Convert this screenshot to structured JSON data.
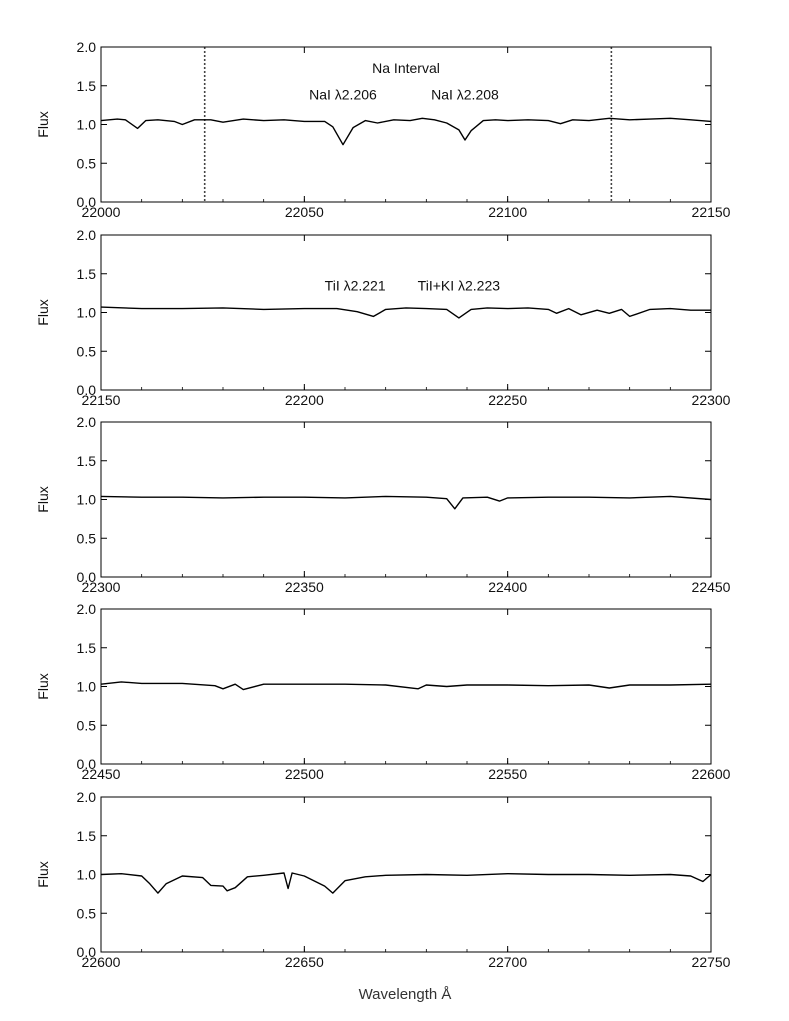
{
  "chart_data": {
    "type": "line",
    "xlabel": "Wavelength Å",
    "panels": [
      {
        "xlim": [
          22000,
          22150
        ],
        "ylim": [
          0.0,
          2.0
        ],
        "ylabel": "Flux",
        "xticks": [
          "22000",
          "22050",
          "22100",
          "22150"
        ],
        "yticks": [
          "0.0",
          "0.5",
          "1.0",
          "1.5",
          "2.0"
        ],
        "title": "Na Interval",
        "vlines": [
          22025.5,
          22125.5
        ],
        "annotations": [
          {
            "text": "NaI λ2.206",
            "x": 22059.5,
            "y": 1.22
          },
          {
            "text": "NaI λ2.208",
            "x": 22089.5,
            "y": 1.22
          }
        ],
        "series": [
          {
            "x": [
              22000,
              22004,
              22006,
              22009,
              22011,
              22014,
              22018,
              22020,
              22023,
              22027,
              22030,
              22035,
              22040,
              22045,
              22050,
              22055,
              22057,
              22059.5,
              22062,
              22065,
              22068,
              22072,
              22076,
              22079,
              22082,
              22085,
              22088,
              22089.5,
              22091,
              22094,
              22097,
              22100,
              22105,
              22110,
              22113,
              22116,
              22120,
              22125,
              22130,
              22135,
              22140,
              22145,
              22150
            ],
            "y": [
              1.05,
              1.07,
              1.06,
              0.95,
              1.05,
              1.06,
              1.04,
              1.0,
              1.06,
              1.06,
              1.03,
              1.07,
              1.05,
              1.06,
              1.04,
              1.04,
              0.97,
              0.74,
              0.96,
              1.05,
              1.02,
              1.06,
              1.05,
              1.08,
              1.06,
              1.02,
              0.93,
              0.8,
              0.92,
              1.05,
              1.06,
              1.05,
              1.06,
              1.05,
              1.01,
              1.06,
              1.05,
              1.08,
              1.06,
              1.07,
              1.08,
              1.06,
              1.04
            ]
          }
        ]
      },
      {
        "xlim": [
          22150,
          22300
        ],
        "ylim": [
          0.0,
          2.0
        ],
        "ylabel": "Flux",
        "xticks": [
          "22150",
          "22200",
          "22250",
          "22300"
        ],
        "yticks": [
          "0.0",
          "0.5",
          "1.0",
          "1.5",
          "2.0"
        ],
        "annotations": [
          {
            "text": "TiI λ2.221",
            "x": 22212.5,
            "y": 1.18
          },
          {
            "text": "TiI+KI λ2.223",
            "x": 22238.0,
            "y": 1.18
          }
        ],
        "series": [
          {
            "x": [
              22150,
              22160,
              22170,
              22180,
              22190,
              22200,
              22208,
              22213,
              22217,
              22220,
              22225,
              22230,
              22235,
              22238,
              22241,
              22245,
              22250,
              22255,
              22260,
              22262,
              22265,
              22268,
              22272,
              22275,
              22278,
              22280,
              22285,
              22290,
              22295,
              22300
            ],
            "y": [
              1.07,
              1.05,
              1.05,
              1.06,
              1.04,
              1.05,
              1.05,
              1.01,
              0.95,
              1.04,
              1.06,
              1.05,
              1.04,
              0.93,
              1.04,
              1.06,
              1.05,
              1.06,
              1.04,
              0.99,
              1.05,
              0.97,
              1.03,
              0.99,
              1.04,
              0.95,
              1.04,
              1.05,
              1.03,
              1.03
            ]
          }
        ]
      },
      {
        "xlim": [
          22300,
          22450
        ],
        "ylim": [
          0.0,
          2.0
        ],
        "ylabel": "Flux",
        "xticks": [
          "22300",
          "22350",
          "22400",
          "22450"
        ],
        "yticks": [
          "0.0",
          "0.5",
          "1.0",
          "1.5",
          "2.0"
        ],
        "series": [
          {
            "x": [
              22300,
              22310,
              22320,
              22330,
              22340,
              22350,
              22360,
              22370,
              22380,
              22385,
              22387,
              22389,
              22395,
              22398,
              22400,
              22410,
              22420,
              22430,
              22440,
              22450
            ],
            "y": [
              1.04,
              1.03,
              1.03,
              1.02,
              1.03,
              1.03,
              1.02,
              1.04,
              1.03,
              1.01,
              0.88,
              1.02,
              1.03,
              0.98,
              1.02,
              1.03,
              1.03,
              1.02,
              1.04,
              1.0
            ]
          }
        ]
      },
      {
        "xlim": [
          22450,
          22600
        ],
        "ylim": [
          0.0,
          2.0
        ],
        "ylabel": "Flux",
        "xticks": [
          "22450",
          "22500",
          "22550",
          "22600"
        ],
        "yticks": [
          "0.0",
          "0.5",
          "1.0",
          "1.5",
          "2.0"
        ],
        "series": [
          {
            "x": [
              22450,
              22455,
              22460,
              22470,
              22478,
              22480,
              22483,
              22485,
              22490,
              22500,
              22510,
              22520,
              22528,
              22530,
              22535,
              22540,
              22550,
              22560,
              22570,
              22575,
              22580,
              22590,
              22600
            ],
            "y": [
              1.03,
              1.06,
              1.04,
              1.04,
              1.01,
              0.97,
              1.03,
              0.96,
              1.03,
              1.03,
              1.03,
              1.02,
              0.97,
              1.02,
              1.0,
              1.02,
              1.02,
              1.01,
              1.02,
              0.98,
              1.02,
              1.02,
              1.03
            ]
          }
        ]
      },
      {
        "xlim": [
          22600,
          22750
        ],
        "ylim": [
          0.0,
          2.0
        ],
        "ylabel": "Flux",
        "xticks": [
          "22600",
          "22650",
          "22700",
          "22750"
        ],
        "yticks": [
          "0.0",
          "0.5",
          "1.0",
          "1.5",
          "2.0"
        ],
        "series": [
          {
            "x": [
              22600,
              22605,
              22610,
              22612,
              22614,
              22616,
              22620,
              22625,
              22627,
              22630,
              22631,
              22633,
              22636,
              22640,
              22645,
              22646,
              22647,
              22650,
              22655,
              22657,
              22660,
              22665,
              22670,
              22680,
              22690,
              22700,
              22710,
              22720,
              22730,
              22740,
              22745,
              22748,
              22750
            ],
            "y": [
              1.0,
              1.01,
              0.98,
              0.88,
              0.76,
              0.88,
              0.98,
              0.96,
              0.86,
              0.85,
              0.79,
              0.83,
              0.97,
              0.99,
              1.02,
              0.82,
              1.02,
              0.98,
              0.85,
              0.76,
              0.92,
              0.97,
              0.99,
              1.0,
              0.99,
              1.01,
              1.0,
              1.0,
              0.99,
              1.0,
              0.98,
              0.91,
              1.0
            ]
          }
        ]
      }
    ]
  }
}
